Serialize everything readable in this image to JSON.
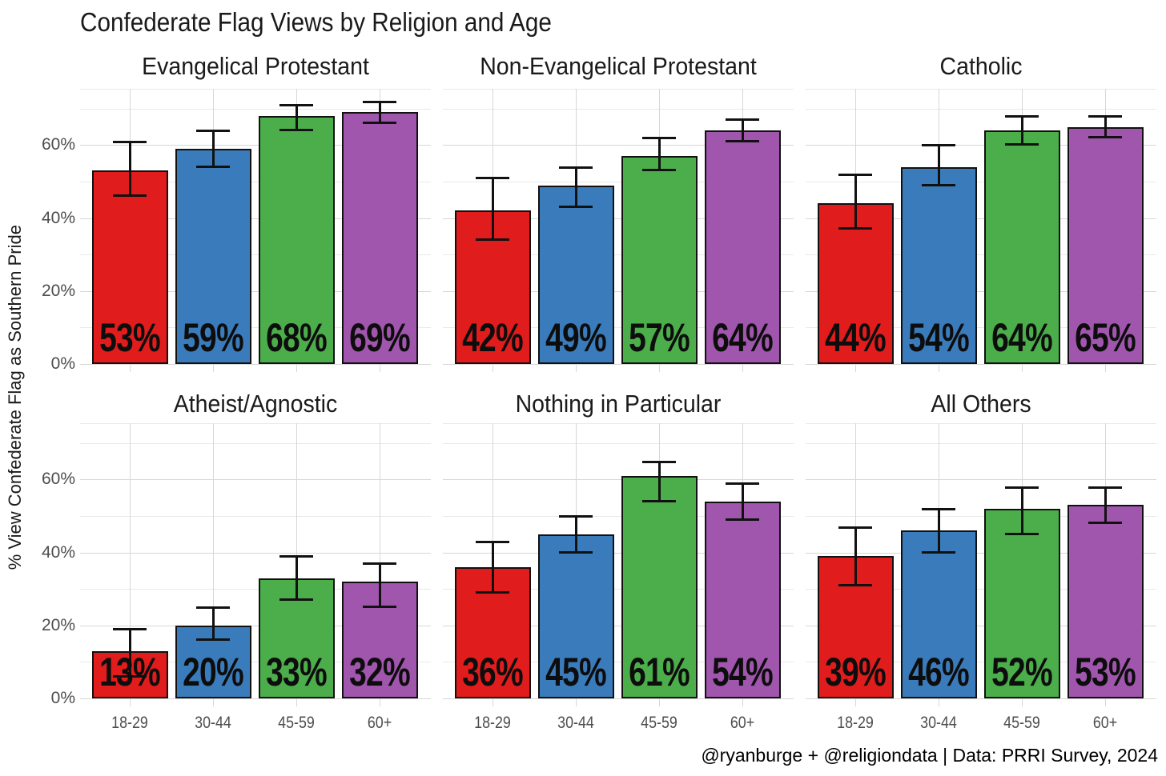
{
  "title": "Confederate Flag Views by Religion and Age",
  "footer": "@ryanburge + @religiondata | Data: PRRI Survey, 2024",
  "chart_data": {
    "type": "bar",
    "title": "Confederate Flag Views by Religion and Age",
    "xlabel": "",
    "ylabel": "% View Confederate Flag as Southern Pride",
    "categories": [
      "18-29",
      "30-44",
      "45-59",
      "60+"
    ],
    "bar_colors": [
      "#E11C1C",
      "#3A7CBB",
      "#4CAD4B",
      "#A156AE"
    ],
    "bar_outline_color": "#111111",
    "grid": true,
    "legend_position": "none",
    "ylim": [
      0,
      75.5
    ],
    "y_major_ticks": [
      {
        "value": 0,
        "label": "0%"
      },
      {
        "value": 20,
        "label": "20%"
      },
      {
        "value": 40,
        "label": "40%"
      },
      {
        "value": 60,
        "label": "60%"
      }
    ],
    "y_minor_ticks": [
      10,
      30,
      50,
      70
    ],
    "error_bars": true,
    "facets": [
      {
        "title": "Evangelical Protestant",
        "values": [
          53,
          59,
          68,
          69
        ],
        "labels": [
          "53%",
          "59%",
          "68%",
          "69%"
        ],
        "err_low": [
          46,
          54,
          64,
          66
        ],
        "err_high": [
          61,
          64,
          71,
          72
        ]
      },
      {
        "title": "Non-Evangelical Protestant",
        "values": [
          42,
          49,
          57,
          64
        ],
        "labels": [
          "42%",
          "49%",
          "57%",
          "64%"
        ],
        "err_low": [
          34,
          43,
          53,
          61
        ],
        "err_high": [
          51,
          54,
          62,
          67
        ]
      },
      {
        "title": "Catholic",
        "values": [
          44,
          54,
          64,
          65
        ],
        "labels": [
          "44%",
          "54%",
          "64%",
          "65%"
        ],
        "err_low": [
          37,
          49,
          60,
          62
        ],
        "err_high": [
          52,
          60,
          68,
          68
        ]
      },
      {
        "title": "Atheist/Agnostic",
        "values": [
          13,
          20,
          33,
          32
        ],
        "labels": [
          "13%",
          "20%",
          "33%",
          "32%"
        ],
        "err_low": [
          6,
          16,
          27,
          25
        ],
        "err_high": [
          19,
          25,
          39,
          37
        ]
      },
      {
        "title": "Nothing in Particular",
        "values": [
          36,
          45,
          61,
          54
        ],
        "labels": [
          "36%",
          "45%",
          "61%",
          "54%"
        ],
        "err_low": [
          29,
          40,
          54,
          49
        ],
        "err_high": [
          43,
          50,
          65,
          59
        ]
      },
      {
        "title": "All Others",
        "values": [
          39,
          46,
          52,
          53
        ],
        "labels": [
          "39%",
          "46%",
          "52%",
          "53%"
        ],
        "err_low": [
          31,
          40,
          45,
          48
        ],
        "err_high": [
          47,
          52,
          58,
          58
        ]
      }
    ]
  }
}
